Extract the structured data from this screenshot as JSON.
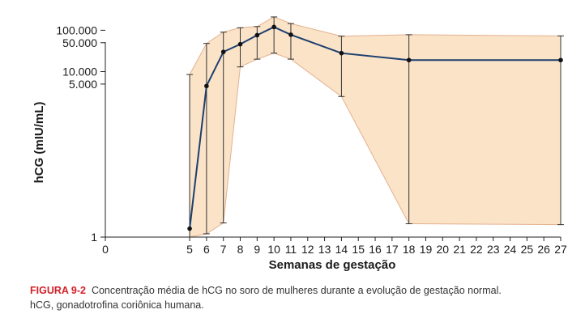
{
  "colors": {
    "band_fill": "#fbe3c8",
    "band_edge": "#e3b18f",
    "line": "#1c3f6e",
    "marker": "#111111",
    "errorbar": "#333333",
    "axis": "#222222",
    "figure_label": "#d4202a"
  },
  "chart_data": {
    "type": "line",
    "xlabel": "Semanas de gestação",
    "ylabel": "hCG (mIU/mL)",
    "xlim": [
      0,
      27
    ],
    "ylim": [
      1,
      200000
    ],
    "yscale": "log",
    "x_ticks": [
      0,
      5,
      6,
      7,
      8,
      9,
      10,
      11,
      12,
      13,
      14,
      15,
      16,
      17,
      18,
      19,
      20,
      21,
      22,
      23,
      24,
      25,
      26,
      27
    ],
    "y_ticks": [
      {
        "value": 1,
        "label": "1"
      },
      {
        "value": 5000,
        "label": "5.000"
      },
      {
        "value": 10000,
        "label": "10.000"
      },
      {
        "value": 50000,
        "label": "50.000"
      },
      {
        "value": 100000,
        "label": "100.000"
      }
    ],
    "grid": false,
    "series": [
      {
        "x": [
          5,
          6,
          7,
          8,
          9,
          10,
          11,
          14,
          18,
          27
        ],
        "y": [
          1.6,
          4500,
          30000,
          46000,
          76000,
          120000,
          78000,
          28000,
          19000,
          19000
        ],
        "lower": [
          1.0,
          1.2,
          2.2,
          13000,
          20000,
          28000,
          20000,
          2500,
          2.1,
          2.0
        ],
        "upper": [
          8500,
          48000,
          90000,
          115000,
          123000,
          210000,
          145000,
          72000,
          78000,
          73000
        ]
      }
    ]
  },
  "caption": {
    "figure_label": "FIGURA 9-2",
    "line1": "Concentração média de hCG no soro de mulheres durante a evolução de gestação normal.",
    "line2": "hCG, gonadotrofina coriônica humana."
  }
}
